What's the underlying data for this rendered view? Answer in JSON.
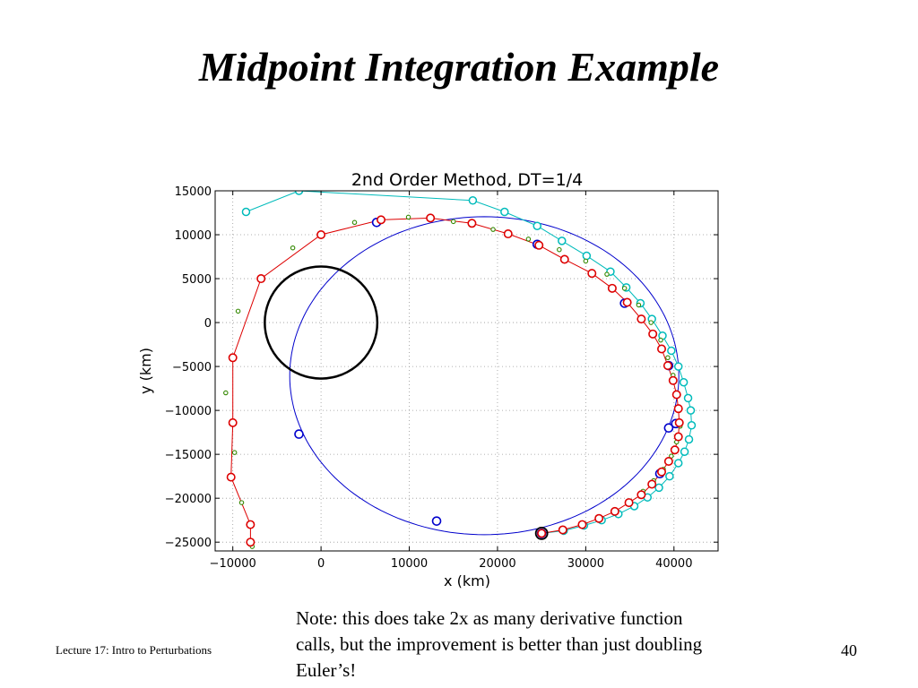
{
  "slide": {
    "title": "Midpoint Integration Example",
    "note": "Note: this does take 2x as many derivative function calls, but the improvement is better than just doubling Euler’s!",
    "footer_left": "Lecture 17: Intro to Perturbations",
    "page_number": "40"
  },
  "chart_data": {
    "type": "line",
    "title": "2nd Order Method, DT=1/4",
    "xlabel": "x (km)",
    "ylabel": "y (km)",
    "xlim": [
      -12000,
      45000
    ],
    "ylim": [
      -26000,
      15000
    ],
    "xticks": [
      -10000,
      0,
      10000,
      20000,
      30000,
      40000
    ],
    "xtick_labels": [
      "−10000",
      "0",
      "10000",
      "20000",
      "30000",
      "40000"
    ],
    "yticks": [
      -25000,
      -20000,
      -15000,
      -10000,
      -5000,
      0,
      5000,
      10000,
      15000
    ],
    "ytick_labels": [
      "−25000",
      "−20000",
      "−15000",
      "−10000",
      "−5000",
      "0",
      "5000",
      "10000",
      "15000"
    ],
    "grid": true,
    "colors": {
      "blue": "#0000cc",
      "red": "#dd0000",
      "cyan": "#00bbbb",
      "green": "#338800",
      "earth": "#000000"
    },
    "earth_circle": {
      "center": [
        0,
        0
      ],
      "radius": 6378
    },
    "series": [
      {
        "color": "blue",
        "marker": "circle",
        "x": [
          25000,
          6300,
          -2500,
          13100,
          25000,
          38400,
          39400,
          40200,
          39400,
          34400,
          24500
        ],
        "y": [
          -24000,
          11400,
          -12700,
          -22600,
          -24000,
          -17200,
          -12000,
          -11500,
          -4900,
          2200,
          8900
        ]
      },
      {
        "color": "red",
        "marker": "circle",
        "x": [
          25000,
          27400,
          29600,
          31500,
          33300,
          34900,
          36300,
          37500,
          38600,
          39400,
          40100,
          40500,
          40600,
          40500,
          40300,
          39900,
          39300,
          38600,
          37600,
          36300,
          34700,
          33000,
          30700,
          27600,
          24700,
          21200,
          17100,
          12400,
          6800,
          0,
          -6800,
          -10000,
          -10000,
          -10200,
          -8000,
          -8000
        ],
        "y": [
          -24000,
          -23600,
          -23000,
          -22300,
          -21500,
          -20500,
          -19600,
          -18400,
          -17000,
          -15800,
          -14500,
          -13000,
          -11400,
          -9800,
          -8200,
          -6600,
          -4900,
          -3000,
          -1300,
          400,
          2300,
          3900,
          5600,
          7200,
          8800,
          10100,
          11300,
          11900,
          11700,
          10000,
          5000,
          -4000,
          -11400,
          -17600,
          -23000,
          -25000
        ]
      },
      {
        "color": "cyan",
        "marker": "circle",
        "x": [
          25000,
          27500,
          29800,
          31800,
          33700,
          35500,
          37000,
          38300,
          39500,
          40500,
          41200,
          41700,
          42000,
          41900,
          41600,
          41100,
          40500,
          39700,
          38700,
          37500,
          36200,
          34600,
          32800,
          30100,
          27300,
          24500,
          20800,
          17200,
          -2500,
          -8500
        ],
        "y": [
          -24000,
          -23700,
          -23100,
          -22500,
          -21800,
          -20900,
          -19900,
          -18800,
          -17500,
          -16000,
          -14700,
          -13300,
          -11700,
          -10000,
          -8600,
          -6800,
          -5000,
          -3200,
          -1500,
          400,
          2200,
          4000,
          5800,
          7600,
          9300,
          11000,
          12600,
          13900,
          15000,
          12600
        ]
      },
      {
        "color": "green",
        "marker": "small-circle",
        "x": [
          25000,
          27500,
          29500,
          31500,
          33300,
          35000,
          36500,
          37700,
          38800,
          39700,
          40300,
          40700,
          40600,
          40300,
          39900,
          39300,
          38500,
          37400,
          36000,
          34400,
          32400,
          30000,
          27000,
          23500,
          19500,
          15000,
          9900,
          3800,
          -3200,
          -9400,
          -10800,
          -9800,
          -9000,
          -7800
        ],
        "y": [
          -24000,
          -23600,
          -23000,
          -22200,
          -21300,
          -20300,
          -19200,
          -18000,
          -16700,
          -15200,
          -13600,
          -11800,
          -10000,
          -8000,
          -6000,
          -4000,
          -2000,
          0,
          2000,
          3900,
          5500,
          7000,
          8300,
          9500,
          10600,
          11500,
          12000,
          11400,
          8500,
          1300,
          -8000,
          -14800,
          -20500,
          -25500
        ]
      }
    ]
  }
}
